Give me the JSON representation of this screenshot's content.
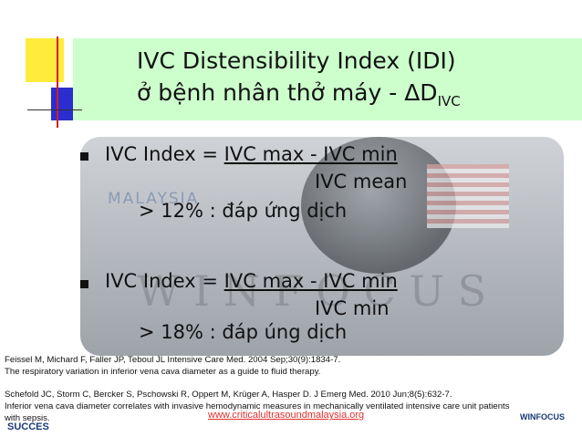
{
  "title": {
    "line1": "IVC Distensibility Index (IDI)",
    "line2": "ở bệnh nhân thở máy - ΔD",
    "line2_subscript": "IVC"
  },
  "bullets": [
    {
      "lhs": "IVC Index =",
      "numerator": "IVC max - IVC min",
      "denominator": "IVC mean",
      "result": "> 12% : đáp ứng dịch"
    },
    {
      "lhs": "IVC Index =",
      "numerator": "IVC max - IVC min",
      "denominator": "IVC min",
      "result": "> 18% : đáp úng dịch"
    }
  ],
  "references": [
    {
      "citation": "Feissel M, Michard F, Faller JP, Teboul JL Intensive Care Med. 2004 Sep;30(9):1834-7.",
      "title": "The respiratory variation in inferior vena cava diameter as a guide to fluid therapy."
    },
    {
      "citation": "Schefold JC, Storm C, Bercker S, Pschowski R, Oppert M, Krüger A, Hasper D. J Emerg Med. 2010 Jun;8(5):632-7.",
      "title": "Inferior vena cava diameter correlates with invasive hemodynamic measures in mechanically ventilated intensive care unit patients with sepsis."
    }
  ],
  "watermarks": {
    "malaysia": "MALAYSIA",
    "winfocus": "W I N F O C U S",
    "succes": "SUCCES",
    "website": "www.criticalultrasoundmalaysia.org",
    "logo": "WINFOCUS"
  }
}
